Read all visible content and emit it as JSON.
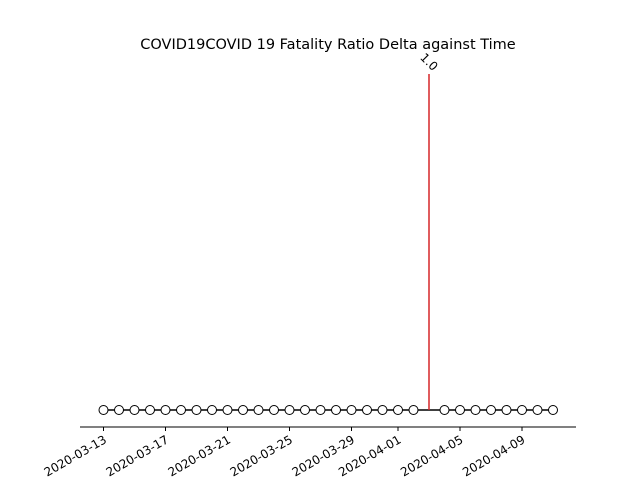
{
  "chart_data": {
    "type": "stem",
    "title": "COVID19COVID 19 Fatality Ratio Delta against Time",
    "xlabel": "",
    "ylabel": "",
    "x_tick_labels": [
      "2020-03-13",
      "2020-03-17",
      "2020-03-21",
      "2020-03-25",
      "2020-03-29",
      "2020-04-01",
      "2020-04-05",
      "2020-04-09"
    ],
    "x": [
      "2020-03-13",
      "2020-03-14",
      "2020-03-15",
      "2020-03-16",
      "2020-03-17",
      "2020-03-18",
      "2020-03-19",
      "2020-03-20",
      "2020-03-21",
      "2020-03-22",
      "2020-03-23",
      "2020-03-24",
      "2020-03-25",
      "2020-03-26",
      "2020-03-27",
      "2020-03-28",
      "2020-03-29",
      "2020-03-30",
      "2020-03-31",
      "2020-04-01",
      "2020-04-02",
      "2020-04-03",
      "2020-04-04",
      "2020-04-05",
      "2020-04-06",
      "2020-04-07",
      "2020-04-08",
      "2020-04-09",
      "2020-04-10",
      "2020-04-11"
    ],
    "series": [
      {
        "values": [
          0,
          0,
          0,
          0,
          0,
          0,
          0,
          0,
          0,
          0,
          0,
          0,
          0,
          0,
          0,
          0,
          0,
          0,
          0,
          0,
          0,
          1.0,
          0,
          0,
          0,
          0,
          0,
          0,
          0,
          0
        ],
        "marker_color": "#ffffff",
        "line_color": "#000000"
      }
    ],
    "highlight": {
      "x": "2020-04-03",
      "value": 1.0,
      "label": "1.0",
      "stem_color": "#d62728"
    },
    "ylim": [
      -0.05,
      1.05
    ],
    "grid": false,
    "legend": "none"
  }
}
